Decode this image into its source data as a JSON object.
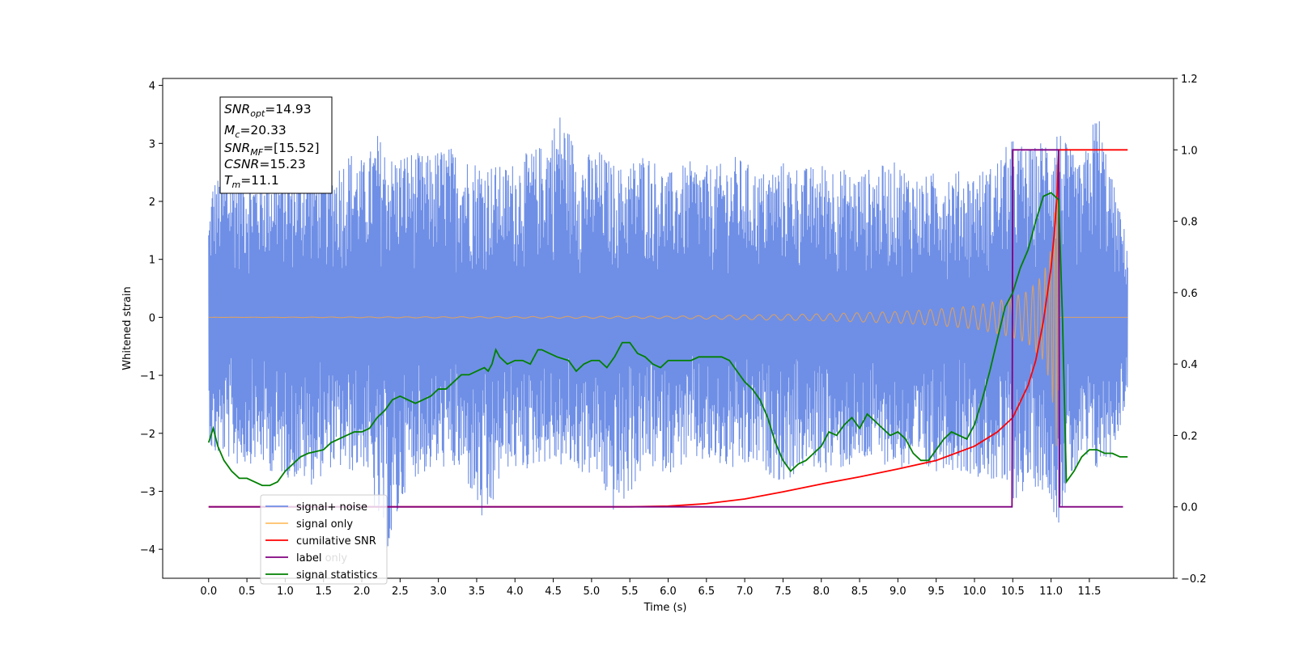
{
  "chart_data": {
    "type": "line",
    "xlabel": "Time (s)",
    "ylabel": "Whitened strain",
    "xlim": [
      -0.6,
      12.6
    ],
    "ylim": [
      -4.5,
      4.12
    ],
    "y2lim": [
      -0.2,
      1.2
    ],
    "x_ticks": [
      "0.0",
      "0.5",
      "1.0",
      "1.5",
      "2.0",
      "2.5",
      "3.0",
      "3.5",
      "4.0",
      "4.5",
      "5.0",
      "5.5",
      "6.0",
      "6.5",
      "7.0",
      "7.5",
      "8.0",
      "8.5",
      "9.0",
      "9.5",
      "10.0",
      "10.5",
      "11.0",
      "11.5"
    ],
    "y_ticks": [
      "−4",
      "−3",
      "−2",
      "−1",
      "0",
      "1",
      "2",
      "3",
      "4"
    ],
    "y2_ticks": [
      "−0.2",
      "0.0",
      "0.2",
      "0.4",
      "0.6",
      "0.8",
      "1.0",
      "1.2"
    ],
    "info_box": {
      "snr_opt": {
        "base": "SNR",
        "sub": "opt",
        "value": "=14.93"
      },
      "mc": {
        "base": "M",
        "sub": "c",
        "value": "=20.33"
      },
      "snr_mf": {
        "base": "SNR",
        "sub": "MF",
        "value": "=[15.52]"
      },
      "csnr": {
        "base": "CSNR",
        "value": "=15.23"
      },
      "tm": {
        "base": "T",
        "sub": "m",
        "value": "=11.1"
      }
    },
    "legend": {
      "items": [
        {
          "label": "signal+ noise",
          "color": "#6f8fe6"
        },
        {
          "label": "signal only",
          "color": "#ffbf66"
        },
        {
          "label": "cumilative SNR",
          "color": "#ff0000"
        },
        {
          "label": "label",
          "color": "#800080"
        },
        {
          "label": "signal statistics",
          "color": "#008000"
        }
      ],
      "hidden_text": {
        "label_only": "label only"
      }
    },
    "series": [
      {
        "name": "signal+ noise",
        "axis": "left",
        "color": "#6f8fe6",
        "t_range": [
          0.0,
          12.0
        ],
        "x": [
          0.0,
          0.05,
          0.2,
          0.4,
          0.6,
          0.85,
          1.1,
          1.35,
          1.6,
          1.85,
          2.05,
          2.2,
          2.38,
          2.6,
          2.85,
          3.1,
          3.35,
          3.62,
          3.85,
          4.1,
          4.35,
          4.6,
          4.85,
          5.1,
          5.25,
          5.4,
          5.7,
          6.0,
          6.3,
          6.6,
          6.9,
          7.2,
          7.5,
          7.8,
          8.1,
          8.4,
          8.7,
          9.0,
          9.3,
          9.6,
          9.9,
          10.2,
          10.5,
          10.75,
          11.0,
          11.08,
          11.2,
          11.4,
          11.6,
          11.8,
          12.0
        ],
        "upper": [
          1.7,
          2.4,
          2.5,
          2.7,
          2.5,
          2.7,
          2.6,
          2.8,
          2.6,
          2.9,
          2.7,
          3.2,
          2.8,
          2.9,
          2.8,
          3.0,
          2.8,
          2.7,
          2.6,
          2.8,
          3.0,
          3.6,
          2.8,
          2.9,
          2.7,
          2.6,
          2.9,
          2.5,
          2.7,
          2.6,
          2.8,
          2.5,
          2.7,
          2.6,
          2.7,
          2.5,
          2.6,
          2.7,
          2.4,
          2.6,
          2.5,
          2.6,
          3.1,
          2.9,
          3.3,
          3.4,
          3.0,
          2.6,
          3.7,
          2.4,
          1.3
        ],
        "lower": [
          -2.0,
          -2.5,
          -2.4,
          -2.6,
          -2.5,
          -2.7,
          -2.8,
          -2.9,
          -2.6,
          -2.7,
          -2.6,
          -3.6,
          -4.1,
          -2.8,
          -2.7,
          -2.6,
          -2.8,
          -3.8,
          -2.6,
          -2.7,
          -2.5,
          -2.6,
          -2.7,
          -2.8,
          -3.4,
          -3.3,
          -2.6,
          -2.7,
          -2.5,
          -2.6,
          -2.7,
          -2.6,
          -2.9,
          -2.6,
          -2.7,
          -2.6,
          -2.5,
          -2.6,
          -2.8,
          -2.6,
          -2.7,
          -2.8,
          -3.2,
          -2.9,
          -3.1,
          -3.7,
          -3.0,
          -2.6,
          -2.7,
          -2.4,
          -1.4
        ]
      },
      {
        "name": "signal only",
        "axis": "left",
        "color": "#d9a066",
        "t_range": [
          0.0,
          12.0
        ],
        "merger_time": 11.1,
        "x": [
          0.0,
          6.0,
          7.0,
          8.0,
          8.5,
          9.0,
          9.5,
          10.0,
          10.3,
          10.5,
          10.7,
          10.9,
          11.0,
          11.05,
          11.1
        ],
        "amplitude": [
          0.0,
          0.02,
          0.04,
          0.06,
          0.08,
          0.1,
          0.14,
          0.2,
          0.28,
          0.35,
          0.45,
          0.75,
          1.2,
          1.9,
          2.9
        ]
      },
      {
        "name": "cumilative SNR",
        "axis": "right",
        "color": "#ff0000",
        "x": [
          0.0,
          5.0,
          5.5,
          6.0,
          6.5,
          7.0,
          7.5,
          8.0,
          8.5,
          9.0,
          9.5,
          10.0,
          10.3,
          10.5,
          10.7,
          10.8,
          10.9,
          11.0,
          11.04,
          11.08,
          11.1,
          12.0
        ],
        "y": [
          0.0,
          0.0,
          0.0,
          0.002,
          0.009,
          0.022,
          0.042,
          0.064,
          0.084,
          0.106,
          0.13,
          0.17,
          0.21,
          0.25,
          0.34,
          0.41,
          0.52,
          0.67,
          0.76,
          0.88,
          1.0,
          1.0
        ]
      },
      {
        "name": "label",
        "axis": "right",
        "color": "#800080",
        "x": [
          0.0,
          10.49,
          10.5,
          10.55,
          11.05,
          11.06,
          11.1,
          11.11,
          11.94
        ],
        "y": [
          0.0,
          0.0,
          1.0,
          1.0,
          1.0,
          1.0,
          1.0,
          0.0,
          0.0
        ]
      },
      {
        "name": "signal statistics",
        "axis": "right",
        "color": "#008000",
        "x": [
          0.0,
          0.06,
          0.12,
          0.2,
          0.3,
          0.4,
          0.5,
          0.6,
          0.7,
          0.75,
          0.8,
          0.9,
          1.0,
          1.1,
          1.2,
          1.3,
          1.5,
          1.6,
          1.7,
          1.8,
          1.9,
          2.0,
          2.1,
          2.2,
          2.3,
          2.4,
          2.5,
          2.6,
          2.7,
          2.8,
          2.9,
          3.0,
          3.1,
          3.2,
          3.3,
          3.4,
          3.5,
          3.6,
          3.65,
          3.7,
          3.75,
          3.8,
          3.9,
          4.0,
          4.1,
          4.2,
          4.3,
          4.35,
          4.45,
          4.55,
          4.7,
          4.8,
          4.9,
          5.0,
          5.1,
          5.2,
          5.3,
          5.4,
          5.5,
          5.6,
          5.7,
          5.8,
          5.9,
          6.0,
          6.1,
          6.2,
          6.3,
          6.4,
          6.5,
          6.6,
          6.7,
          6.8,
          6.9,
          7.0,
          7.1,
          7.2,
          7.3,
          7.4,
          7.5,
          7.6,
          7.7,
          7.8,
          7.9,
          8.0,
          8.1,
          8.2,
          8.3,
          8.4,
          8.5,
          8.6,
          8.7,
          8.8,
          8.9,
          9.0,
          9.1,
          9.2,
          9.3,
          9.4,
          9.5,
          9.6,
          9.7,
          9.8,
          9.9,
          10.0,
          10.1,
          10.2,
          10.3,
          10.4,
          10.5,
          10.6,
          10.7,
          10.8,
          10.9,
          11.0,
          11.1,
          11.15,
          11.2,
          11.3,
          11.4,
          11.5,
          11.6,
          11.7,
          11.8,
          11.9,
          12.0
        ],
        "y": [
          0.18,
          0.22,
          0.17,
          0.13,
          0.1,
          0.08,
          0.08,
          0.07,
          0.06,
          0.06,
          0.06,
          0.07,
          0.1,
          0.12,
          0.14,
          0.15,
          0.16,
          0.18,
          0.19,
          0.2,
          0.21,
          0.21,
          0.22,
          0.25,
          0.27,
          0.3,
          0.31,
          0.3,
          0.29,
          0.3,
          0.31,
          0.33,
          0.33,
          0.35,
          0.37,
          0.37,
          0.38,
          0.39,
          0.38,
          0.4,
          0.44,
          0.42,
          0.4,
          0.41,
          0.41,
          0.4,
          0.44,
          0.44,
          0.43,
          0.42,
          0.41,
          0.38,
          0.4,
          0.41,
          0.41,
          0.39,
          0.42,
          0.46,
          0.46,
          0.43,
          0.42,
          0.4,
          0.39,
          0.41,
          0.41,
          0.41,
          0.41,
          0.42,
          0.42,
          0.42,
          0.42,
          0.41,
          0.38,
          0.35,
          0.33,
          0.3,
          0.25,
          0.18,
          0.13,
          0.1,
          0.12,
          0.13,
          0.15,
          0.17,
          0.21,
          0.2,
          0.23,
          0.25,
          0.22,
          0.26,
          0.24,
          0.22,
          0.2,
          0.21,
          0.19,
          0.15,
          0.13,
          0.13,
          0.16,
          0.19,
          0.21,
          0.2,
          0.19,
          0.23,
          0.3,
          0.38,
          0.47,
          0.56,
          0.6,
          0.67,
          0.72,
          0.8,
          0.87,
          0.88,
          0.86,
          0.52,
          0.07,
          0.1,
          0.14,
          0.16,
          0.16,
          0.15,
          0.15,
          0.14,
          0.14
        ]
      }
    ]
  }
}
